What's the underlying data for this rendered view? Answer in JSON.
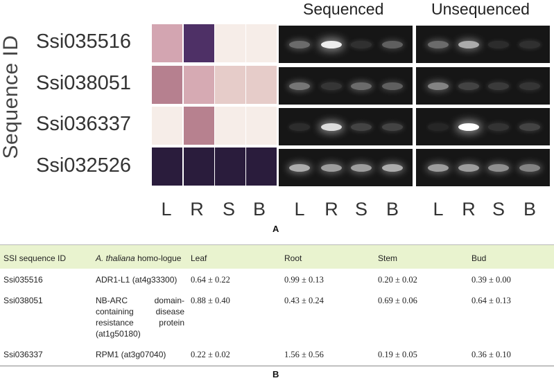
{
  "figure_a": {
    "y_axis_label": "Sequence ID",
    "panel_titles": [
      "Sequenced",
      "Unsequenced"
    ],
    "tissue_labels": [
      "L",
      "R",
      "S",
      "B"
    ],
    "caption": "A",
    "rows": [
      {
        "id": "Ssi035516",
        "heat_colors": [
          "#d3a5b1",
          "#4e3066",
          "#f6ede8",
          "#f6ede8"
        ]
      },
      {
        "id": "Ssi038051",
        "heat_colors": [
          "#b6808f",
          "#d6aab3",
          "#e6ccc9",
          "#e6ccc9"
        ]
      },
      {
        "id": "Ssi036337",
        "heat_colors": [
          "#f6ede8",
          "#b7818f",
          "#f6ede8",
          "#f6ede8"
        ]
      },
      {
        "id": "Ssi032526",
        "heat_colors": [
          "#2a1c3c",
          "#2a1c3c",
          "#2a1c3c",
          "#2a1c3c"
        ]
      }
    ],
    "gel_band_intensity": {
      "Sequenced": [
        [
          0.5,
          0.95,
          0.18,
          0.45
        ],
        [
          0.55,
          0.22,
          0.5,
          0.45
        ],
        [
          0.15,
          0.9,
          0.3,
          0.3
        ],
        [
          0.75,
          0.7,
          0.7,
          0.75
        ]
      ],
      "Unsequenced": [
        [
          0.5,
          0.75,
          0.15,
          0.18
        ],
        [
          0.6,
          0.3,
          0.25,
          0.22
        ],
        [
          0.1,
          1.0,
          0.2,
          0.3
        ],
        [
          0.7,
          0.7,
          0.65,
          0.6
        ]
      ]
    }
  },
  "table_b": {
    "caption": "B",
    "headers": {
      "id": "SSI sequence ID",
      "homologue_italic": "A. thaliana",
      "homologue_rest": "homo-logue",
      "leaf": "Leaf",
      "root": "Root",
      "stem": "Stem",
      "bud": "Bud"
    },
    "rows": [
      {
        "id": "Ssi035516",
        "homologue": "ADR1-L1 (at4g33300)",
        "leaf": "0.64 ± 0.22",
        "root": "0.99 ± 0.13",
        "stem": "0.20 ± 0.02",
        "bud": "0.39 ± 0.00"
      },
      {
        "id": "Ssi038051",
        "homologue": "NB-ARC domain-containing disease resistance protein (at1g50180)",
        "leaf": "0.88 ± 0.40",
        "root": "0.43 ± 0.24",
        "stem": "0.69 ± 0.06",
        "bud": "0.64 ± 0.13"
      },
      {
        "id": "Ssi036337",
        "homologue": "RPM1 (at3g07040)",
        "leaf": "0.22 ± 0.02",
        "root": "1.56 ± 0.56",
        "stem": "0.19 ± 0.05",
        "bud": "0.36 ± 0.10"
      }
    ]
  }
}
